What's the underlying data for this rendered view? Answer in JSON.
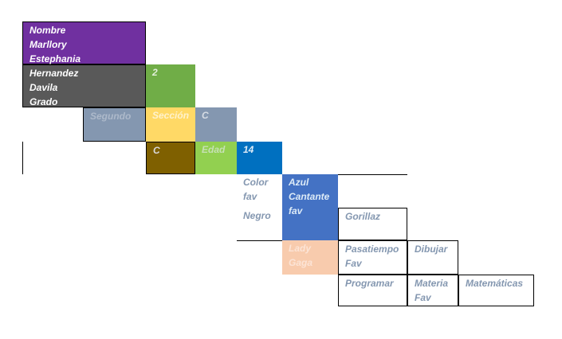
{
  "cells": [
    {
      "lines": [
        "Nombre",
        "Marllory",
        "Estephania"
      ],
      "fill": "#7030a0",
      "color": "#ffffff"
    },
    {
      "lines": [
        "Hernandez",
        "Davila",
        "Grado"
      ],
      "fill": "#595959",
      "color": "#ffffff"
    },
    {
      "lines": [
        "2"
      ],
      "fill": "#70ad47",
      "color": "#e2efda"
    },
    {
      "lines": [
        "Segundo"
      ],
      "fill": "#8497b0",
      "color": "#adb9ca"
    },
    {
      "lines": [
        "Sección"
      ],
      "fill": "#ffd966",
      "color": "#fff2cc"
    },
    {
      "lines": [
        "C"
      ],
      "fill": "#8497b0",
      "color": "#d6dce4"
    },
    {
      "lines": [
        "C"
      ],
      "fill": "#7f6000",
      "color": "#d9d9d9"
    },
    {
      "lines": [
        "Edad"
      ],
      "fill": "#92d050",
      "color": "#c6e0b4"
    },
    {
      "lines": [
        "14"
      ],
      "fill": "#0070c0",
      "color": "#ddebf7"
    },
    {
      "lines": [
        "Color",
        "fav"
      ],
      "fill": "#ffffff",
      "color": "#8497b0"
    },
    {
      "lines": [
        "Azul",
        "Cantante",
        "fav"
      ],
      "fill": "#4472c4",
      "color": "#ddebf7"
    },
    {
      "lines": [
        "Negro"
      ],
      "fill": "#ffffff",
      "color": "#8497b0"
    },
    {
      "lines": [
        "Gorillaz"
      ],
      "fill": "#ffffff",
      "color": "#8497b0"
    },
    {
      "lines": [
        "Lady",
        "Gaga"
      ],
      "fill": "#f8cbad",
      "color": "#fce4d6"
    },
    {
      "lines": [
        "Pasatiempo",
        "Fav"
      ],
      "fill": "#ffffff",
      "color": "#8497b0"
    },
    {
      "lines": [
        "Dibujar"
      ],
      "fill": "#ffffff",
      "color": "#8497b0"
    },
    {
      "lines": [
        "Programar"
      ],
      "fill": "#ffffff",
      "color": "#8497b0"
    },
    {
      "lines": [
        "Materia",
        "Fav"
      ],
      "fill": "#ffffff",
      "color": "#8497b0"
    },
    {
      "lines": [
        "Matemáticas"
      ],
      "fill": "#ffffff",
      "color": "#8497b0"
    }
  ]
}
